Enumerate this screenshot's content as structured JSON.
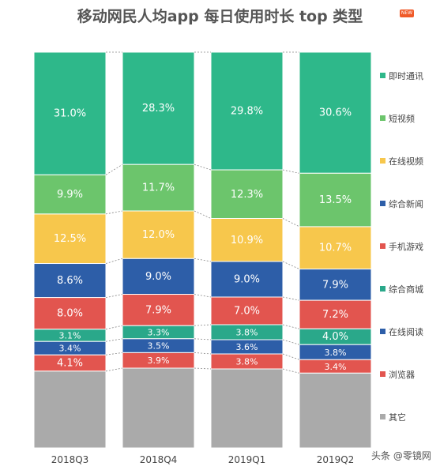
{
  "header": {
    "title": "移动网民人均app 每日使用时长 top 类型",
    "badge": "NEW"
  },
  "watermark": "头条 @零镜网",
  "chart_data": {
    "type": "bar",
    "stacked": "percent",
    "title": "移动网民人均app 每日使用时长 top 类型",
    "categories": [
      "2018Q3",
      "2018Q4",
      "2019Q1",
      "2019Q2"
    ],
    "series": [
      {
        "name": "即时通讯",
        "color": "#2eb88a",
        "values": [
          31.0,
          28.3,
          29.8,
          30.6
        ],
        "labels": [
          "31.0%",
          "28.3%",
          "29.8%",
          "30.6%"
        ]
      },
      {
        "name": "短视频",
        "color": "#6cc56c",
        "values": [
          9.9,
          11.7,
          12.3,
          13.5
        ],
        "labels": [
          "9.9%",
          "11.7%",
          "12.3%",
          "13.5%"
        ]
      },
      {
        "name": "在线视频",
        "color": "#f7c74c",
        "values": [
          12.5,
          12.0,
          10.9,
          10.7
        ],
        "labels": [
          "12.5%",
          "12.0%",
          "10.9%",
          "10.7%"
        ]
      },
      {
        "name": "综合新闻",
        "color": "#2d5ea8",
        "values": [
          8.6,
          9.0,
          9.0,
          7.9
        ],
        "labels": [
          "8.6%",
          "9.0%",
          "9.0%",
          "7.9%"
        ]
      },
      {
        "name": "手机游戏",
        "color": "#e2554f",
        "values": [
          8.0,
          7.9,
          7.0,
          7.2
        ],
        "labels": [
          "8.0%",
          "7.9%",
          "7.0%",
          "7.2%"
        ]
      },
      {
        "name": "综合商城",
        "color": "#2aa88a",
        "values": [
          3.1,
          3.3,
          3.8,
          4.0
        ],
        "labels": [
          "3.1%",
          "3.3%",
          "3.8%",
          "4.0%"
        ]
      },
      {
        "name": "在线阅读",
        "color": "#2d5ea8",
        "values": [
          3.4,
          3.5,
          3.6,
          3.8
        ],
        "labels": [
          "3.4%",
          "3.5%",
          "3.6%",
          "3.8%"
        ]
      },
      {
        "name": "浏览器",
        "color": "#e2554f",
        "values": [
          4.1,
          3.9,
          3.8,
          3.4
        ],
        "labels": [
          "4.1%",
          "3.9%",
          "3.8%",
          "3.4%"
        ]
      },
      {
        "name": "其它",
        "color": "#aaaaaa",
        "values": [
          19.4,
          20.1,
          20.0,
          18.9
        ],
        "labels": [
          "",
          "",
          "",
          ""
        ]
      }
    ],
    "legend": "right"
  }
}
